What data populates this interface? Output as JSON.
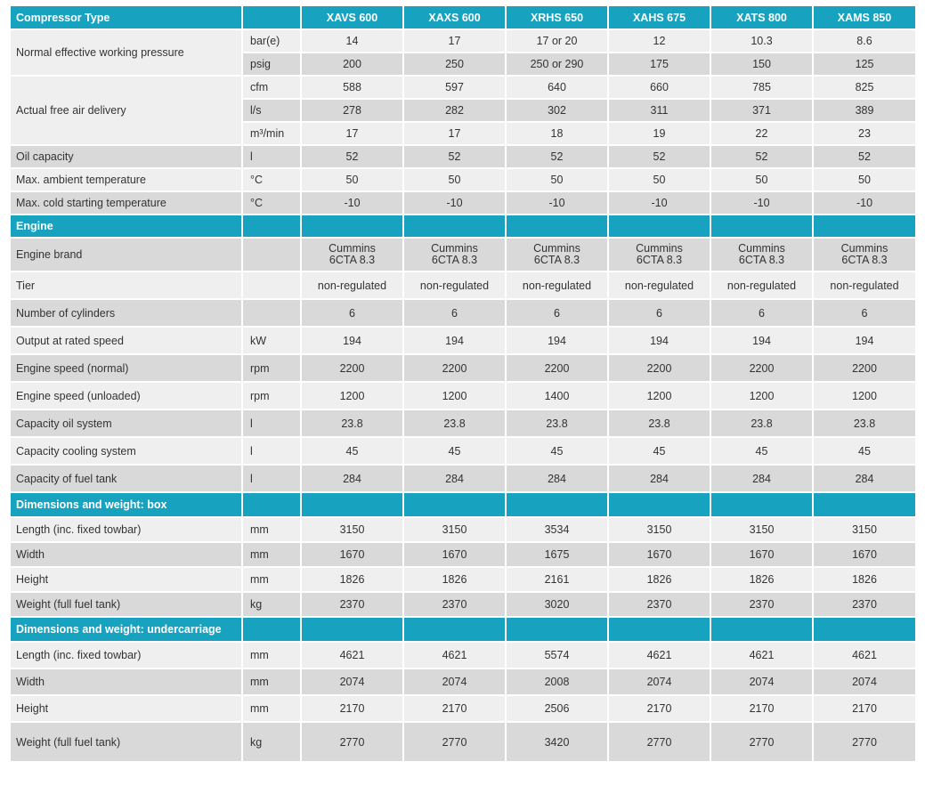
{
  "header": {
    "title": "Compressor Type",
    "models": [
      "XAVS 600",
      "XAXS 600",
      "XRHS 650",
      "XAHS 675",
      "XATS 800",
      "XAMS 850"
    ]
  },
  "compressor_rows": {
    "pressure": {
      "label": "Normal effective working pressure",
      "rows": [
        {
          "unit": "bar(e)",
          "values": [
            "14",
            "17",
            "17 or 20",
            "12",
            "10.3",
            "8.6"
          ]
        },
        {
          "unit": "psig",
          "values": [
            "200",
            "250",
            "250 or 290",
            "175",
            "150",
            "125"
          ]
        }
      ]
    },
    "air": {
      "label": "Actual free air delivery",
      "rows": [
        {
          "unit": "cfm",
          "values": [
            "588",
            "597",
            "640",
            "660",
            "785",
            "825"
          ]
        },
        {
          "unit": "l/s",
          "values": [
            "278",
            "282",
            "302",
            "311",
            "371",
            "389"
          ]
        },
        {
          "unit": "m³/min",
          "values": [
            "17",
            "17",
            "18",
            "19",
            "22",
            "23"
          ]
        }
      ]
    },
    "singles": [
      {
        "label": "Oil capacity",
        "unit": "l",
        "values": [
          "52",
          "52",
          "52",
          "52",
          "52",
          "52"
        ]
      },
      {
        "label": "Max. ambient temperature",
        "unit": "°C",
        "values": [
          "50",
          "50",
          "50",
          "50",
          "50",
          "50"
        ]
      },
      {
        "label": "Max. cold starting temperature",
        "unit": "°C",
        "values": [
          "-10",
          "-10",
          "-10",
          "-10",
          "-10",
          "-10"
        ]
      }
    ]
  },
  "engine": {
    "title": "Engine",
    "brand": {
      "label": "Engine brand",
      "unit": "",
      "line1": "Cummins",
      "line2": "6CTA 8.3"
    },
    "rows": [
      {
        "label": "Tier",
        "unit": "",
        "values": [
          "non-regulated",
          "non-regulated",
          "non-regulated",
          "non-regulated",
          "non-regulated",
          "non-regulated"
        ]
      },
      {
        "label": "Number of cylinders",
        "unit": "",
        "values": [
          "6",
          "6",
          "6",
          "6",
          "6",
          "6"
        ]
      },
      {
        "label": "Output at rated speed",
        "unit": "kW",
        "values": [
          "194",
          "194",
          "194",
          "194",
          "194",
          "194"
        ]
      },
      {
        "label": "Engine speed (normal)",
        "unit": "rpm",
        "values": [
          "2200",
          "2200",
          "2200",
          "2200",
          "2200",
          "2200"
        ]
      },
      {
        "label": "Engine speed (unloaded)",
        "unit": "rpm",
        "values": [
          "1200",
          "1200",
          "1400",
          "1200",
          "1200",
          "1200"
        ]
      },
      {
        "label": "Capacity oil system",
        "unit": "l",
        "values": [
          "23.8",
          "23.8",
          "23.8",
          "23.8",
          "23.8",
          "23.8"
        ]
      },
      {
        "label": "Capacity cooling system",
        "unit": "l",
        "values": [
          "45",
          "45",
          "45",
          "45",
          "45",
          "45"
        ]
      },
      {
        "label": "Capacity of fuel tank",
        "unit": "l",
        "values": [
          "284",
          "284",
          "284",
          "284",
          "284",
          "284"
        ]
      }
    ]
  },
  "box": {
    "title": "Dimensions and weight: box",
    "rows": [
      {
        "label": "Length (inc. fixed towbar)",
        "unit": "mm",
        "values": [
          "3150",
          "3150",
          "3534",
          "3150",
          "3150",
          "3150"
        ]
      },
      {
        "label": "Width",
        "unit": "mm",
        "values": [
          "1670",
          "1670",
          "1675",
          "1670",
          "1670",
          "1670"
        ]
      },
      {
        "label": "Height",
        "unit": "mm",
        "values": [
          "1826",
          "1826",
          "2161",
          "1826",
          "1826",
          "1826"
        ]
      },
      {
        "label": "Weight (full fuel tank)",
        "unit": "kg",
        "values": [
          "2370",
          "2370",
          "3020",
          "2370",
          "2370",
          "2370"
        ]
      }
    ]
  },
  "undercarriage": {
    "title": "Dimensions and weight: undercarriage",
    "rows": [
      {
        "label": "Length (inc. fixed towbar)",
        "unit": "mm",
        "values": [
          "4621",
          "4621",
          "5574",
          "4621",
          "4621",
          "4621"
        ]
      },
      {
        "label": "Width",
        "unit": "mm",
        "values": [
          "2074",
          "2074",
          "2008",
          "2074",
          "2074",
          "2074"
        ]
      },
      {
        "label": "Height",
        "unit": "mm",
        "values": [
          "2170",
          "2170",
          "2506",
          "2170",
          "2170",
          "2170"
        ]
      },
      {
        "label": "Weight (full fuel tank)",
        "unit": "kg",
        "values": [
          "2770",
          "2770",
          "3420",
          "2770",
          "2770",
          "2770"
        ]
      }
    ]
  },
  "colors": {
    "accent": "#17a2c0",
    "shade": "#d9d9d9",
    "light": "#efefef"
  }
}
